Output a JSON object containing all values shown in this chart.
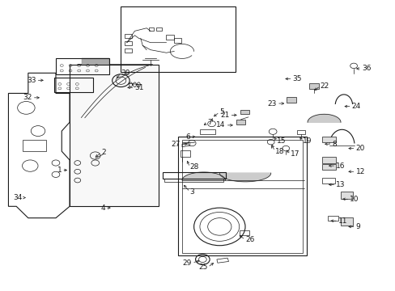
{
  "bg_color": "#ffffff",
  "line_color": "#1a1a1a",
  "fig_width": 4.89,
  "fig_height": 3.6,
  "dpi": 100,
  "label_fs": 6.5,
  "arrow_lw": 0.5,
  "part_labels": {
    "1": [
      0.175,
      0.415,
      "1",
      "right",
      -0.02,
      0.0
    ],
    "2": [
      0.235,
      0.455,
      "2",
      "left",
      0.02,
      0.02
    ],
    "3": [
      0.46,
      0.37,
      "3",
      "left",
      0.02,
      -0.03
    ],
    "4": [
      0.285,
      0.285,
      "4",
      "right",
      -0.02,
      0.0
    ],
    "5": [
      0.535,
      0.595,
      "5",
      "left",
      0.02,
      0.02
    ],
    "6": [
      0.5,
      0.53,
      "6",
      "right",
      -0.02,
      0.0
    ],
    "7": [
      0.51,
      0.565,
      "7",
      "left",
      0.015,
      0.015
    ],
    "8": [
      0.815,
      0.505,
      "8",
      "left",
      0.025,
      0.0
    ],
    "9": [
      0.875,
      0.22,
      "9",
      "left",
      0.025,
      0.0
    ],
    "10": [
      0.86,
      0.315,
      "10",
      "left",
      0.025,
      0.0
    ],
    "11": [
      0.83,
      0.24,
      "11",
      "left",
      0.025,
      0.0
    ],
    "12": [
      0.875,
      0.41,
      "12",
      "left",
      0.025,
      0.0
    ],
    "13": [
      0.825,
      0.365,
      "13",
      "left",
      0.025,
      0.0
    ],
    "14": [
      0.595,
      0.57,
      "14",
      "right",
      -0.025,
      0.0
    ],
    "15": [
      0.69,
      0.535,
      "15",
      "left",
      0.01,
      -0.02
    ],
    "16": [
      0.825,
      0.43,
      "16",
      "left",
      0.025,
      0.0
    ],
    "17": [
      0.72,
      0.49,
      "17",
      "left",
      0.015,
      -0.02
    ],
    "18": [
      0.685,
      0.51,
      "18",
      "left",
      0.01,
      -0.03
    ],
    "19": [
      0.755,
      0.535,
      "19",
      "left",
      0.01,
      -0.02
    ],
    "20": [
      0.875,
      0.49,
      "20",
      "left",
      0.025,
      0.0
    ],
    "21": [
      0.605,
      0.605,
      "21",
      "right",
      -0.025,
      0.0
    ],
    "22": [
      0.79,
      0.685,
      "22",
      "left",
      0.02,
      0.02
    ],
    "23": [
      0.725,
      0.645,
      "23",
      "right",
      -0.025,
      0.0
    ],
    "24": [
      0.865,
      0.635,
      "24",
      "left",
      0.025,
      0.0
    ],
    "25": [
      0.545,
      0.1,
      "25",
      "right",
      -0.02,
      -0.02
    ],
    "26": [
      0.6,
      0.195,
      "26",
      "left",
      0.02,
      -0.02
    ],
    "27": [
      0.48,
      0.505,
      "27",
      "right",
      -0.025,
      0.0
    ],
    "28": [
      0.47,
      0.455,
      "28",
      "left",
      0.01,
      -0.03
    ],
    "29": [
      0.51,
      0.105,
      "29",
      "right",
      -0.025,
      -0.01
    ],
    "30": [
      0.29,
      0.725,
      "30",
      "left",
      0.015,
      0.025
    ],
    "31": [
      0.315,
      0.7,
      "31",
      "left",
      0.025,
      0.0
    ],
    "32": [
      0.105,
      0.665,
      "32",
      "right",
      -0.025,
      0.0
    ],
    "33": [
      0.115,
      0.725,
      "33",
      "right",
      -0.025,
      0.0
    ],
    "34": [
      0.07,
      0.32,
      "34",
      "right",
      -0.015,
      0.0
    ],
    "35": [
      0.715,
      0.73,
      "35",
      "left",
      0.025,
      0.0
    ],
    "36": [
      0.895,
      0.765,
      "36",
      "left",
      0.02,
      0.0
    ]
  }
}
